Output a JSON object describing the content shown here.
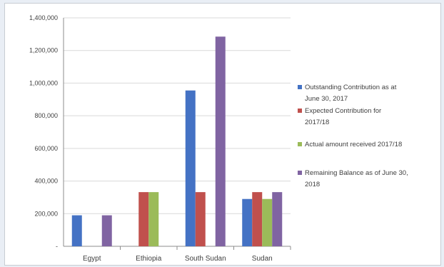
{
  "chart_data": {
    "type": "bar",
    "categories": [
      "Egypt",
      "Ethiopia",
      "South Sudan",
      "Sudan"
    ],
    "series": [
      {
        "name": "Outstanding Contribution as at June 30, 2017",
        "legend_lines": [
          "Outstanding Contribution as at",
          "June 30, 2017"
        ],
        "color": "#4472c4",
        "values": [
          190000,
          0,
          955000,
          290000
        ]
      },
      {
        "name": "Expected Contribution for 2017/18",
        "legend_lines": [
          "Expected Contribution for",
          "2017/18"
        ],
        "color": "#c0504d",
        "values": [
          0,
          332000,
          332000,
          332000
        ]
      },
      {
        "name": "Actual amount received 2017/18",
        "legend_lines": [
          "Actual amount received 2017/18"
        ],
        "color": "#9bbb59",
        "values": [
          0,
          332000,
          0,
          290000
        ]
      },
      {
        "name": "Remaining Balance as of June 30, 2018",
        "legend_lines": [
          "Remaining Balance as of June 30,",
          "2018"
        ],
        "color": "#8064a2",
        "values": [
          190000,
          0,
          1285000,
          332000
        ]
      }
    ],
    "yticks": [
      "-",
      "200,000",
      "400,000",
      "600,000",
      "800,000",
      "1,000,000",
      "1,200,000",
      "1,400,000"
    ],
    "ylim": [
      0,
      1400000
    ],
    "grid": true,
    "legend_position": "right"
  }
}
